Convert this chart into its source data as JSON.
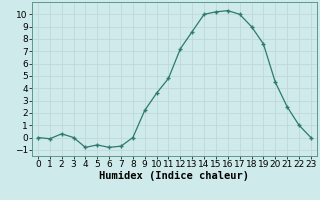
{
  "x": [
    0,
    1,
    2,
    3,
    4,
    5,
    6,
    7,
    8,
    9,
    10,
    11,
    12,
    13,
    14,
    15,
    16,
    17,
    18,
    19,
    20,
    21,
    22,
    23
  ],
  "y": [
    0,
    -0.1,
    0.3,
    0,
    -0.8,
    -0.6,
    -0.8,
    -0.7,
    0,
    2.2,
    3.6,
    4.8,
    7.2,
    8.6,
    10.0,
    10.2,
    10.3,
    10.0,
    9.0,
    7.6,
    4.5,
    2.5,
    1.0,
    0.0
  ],
  "xlabel": "Humidex (Indice chaleur)",
  "xlim": [
    -0.5,
    23.5
  ],
  "ylim": [
    -1.5,
    11.0
  ],
  "line_color": "#2d7a6e",
  "marker": "+",
  "bg_color": "#ceeaea",
  "grid_color": "#c0d8d8",
  "tick_label_fontsize": 6.5,
  "xlabel_fontsize": 7.5,
  "yticks": [
    -1,
    0,
    1,
    2,
    3,
    4,
    5,
    6,
    7,
    8,
    9,
    10
  ],
  "xticks": [
    0,
    1,
    2,
    3,
    4,
    5,
    6,
    7,
    8,
    9,
    10,
    11,
    12,
    13,
    14,
    15,
    16,
    17,
    18,
    19,
    20,
    21,
    22,
    23
  ]
}
